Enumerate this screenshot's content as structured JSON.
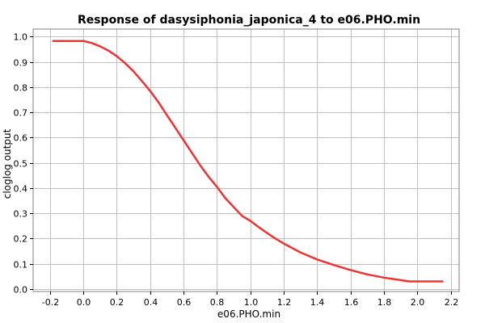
{
  "chart_data": {
    "type": "line",
    "title": "Response of dasysiphonia_japonica_4 to e06.PHO.min",
    "xlabel": "e06.PHO.min",
    "ylabel": "cloglog output",
    "xlim": [
      -0.3,
      2.25
    ],
    "ylim": [
      -0.01,
      1.03
    ],
    "xticks": [
      -0.2,
      0.0,
      0.2,
      0.4,
      0.6,
      0.8,
      1.0,
      1.2,
      1.4,
      1.6,
      1.8,
      2.0,
      2.2
    ],
    "xtick_labels": [
      "-0.2",
      "0.0",
      "0.2",
      "0.4",
      "0.6",
      "0.8",
      "1.0",
      "1.2",
      "1.4",
      "1.6",
      "1.8",
      "2.0",
      "2.2"
    ],
    "yticks": [
      0.0,
      0.1,
      0.2,
      0.3,
      0.4,
      0.5,
      0.6,
      0.7,
      0.8,
      0.9,
      1.0
    ],
    "ytick_labels": [
      "0.0",
      "0.1",
      "0.2",
      "0.3",
      "0.4",
      "0.5",
      "0.6",
      "0.7",
      "0.8",
      "0.9",
      "1.0"
    ],
    "grid": true,
    "series": [
      {
        "color": "#ee3333",
        "x": [
          -0.18,
          0.0,
          0.05,
          0.1,
          0.15,
          0.2,
          0.25,
          0.3,
          0.35,
          0.4,
          0.45,
          0.5,
          0.55,
          0.6,
          0.65,
          0.7,
          0.75,
          0.8,
          0.85,
          0.9,
          0.95,
          1.0,
          1.05,
          1.1,
          1.15,
          1.2,
          1.3,
          1.4,
          1.5,
          1.6,
          1.7,
          1.8,
          1.9,
          1.95,
          2.0,
          2.15
        ],
        "y": [
          0.983,
          0.983,
          0.975,
          0.962,
          0.945,
          0.923,
          0.895,
          0.863,
          0.825,
          0.785,
          0.74,
          0.69,
          0.64,
          0.59,
          0.54,
          0.49,
          0.445,
          0.405,
          0.36,
          0.325,
          0.29,
          0.27,
          0.245,
          0.222,
          0.2,
          0.18,
          0.145,
          0.117,
          0.095,
          0.075,
          0.058,
          0.045,
          0.035,
          0.03,
          0.03,
          0.03
        ]
      }
    ]
  }
}
